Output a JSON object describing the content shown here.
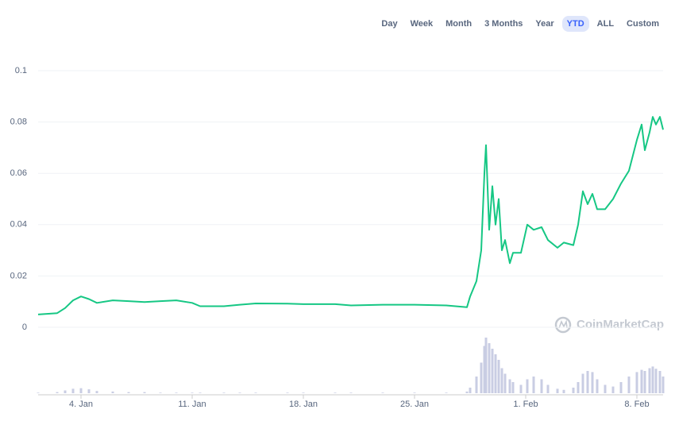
{
  "chart_data": {
    "type": "line",
    "range_buttons": [
      "Day",
      "Week",
      "Month",
      "3 Months",
      "Year",
      "YTD",
      "ALL",
      "Custom"
    ],
    "selected_range": 5,
    "watermark": "CoinMarketCap",
    "x": [
      1.3,
      2.5,
      3,
      3.5,
      4,
      4.5,
      5,
      6,
      7,
      8,
      9,
      10,
      11,
      11.5,
      13,
      14,
      15,
      17,
      18,
      20,
      21,
      23,
      25,
      27,
      28.3,
      28.5,
      28.9,
      29.2,
      29.4,
      29.5,
      29.7,
      29.9,
      30.1,
      30.3,
      30.5,
      30.7,
      31,
      31.2,
      31.7,
      32.1,
      32.5,
      33,
      33.4,
      34,
      34.4,
      35,
      35.3,
      35.6,
      35.9,
      36.2,
      36.5,
      37,
      37.5,
      38,
      38.5,
      39,
      39.3,
      39.5,
      39.8,
      40,
      40.2,
      40.45,
      40.65
    ],
    "series": [
      {
        "color": "#16c784",
        "values": [
          0.005,
          0.0055,
          0.0075,
          0.0105,
          0.012,
          0.011,
          0.0095,
          0.0105,
          0.0102,
          0.0098,
          0.0102,
          0.0105,
          0.0095,
          0.0082,
          0.0082,
          0.0088,
          0.0093,
          0.0092,
          0.009,
          0.009,
          0.0085,
          0.0088,
          0.0088,
          0.0085,
          0.0078,
          0.012,
          0.018,
          0.03,
          0.06,
          0.071,
          0.038,
          0.055,
          0.04,
          0.05,
          0.03,
          0.034,
          0.025,
          0.029,
          0.029,
          0.04,
          0.038,
          0.039,
          0.034,
          0.031,
          0.033,
          0.032,
          0.04,
          0.053,
          0.048,
          0.052,
          0.046,
          0.046,
          0.05,
          0.056,
          0.061,
          0.073,
          0.079,
          0.069,
          0.076,
          0.082,
          0.079,
          0.082,
          0.077
        ]
      }
    ],
    "volume": {
      "color": "#c9cde3",
      "ylim": [
        0,
        100
      ],
      "values": [
        1,
        2,
        5,
        8,
        9,
        7,
        4,
        3,
        2,
        2,
        1,
        1,
        1,
        1,
        1,
        1,
        1,
        1,
        1,
        1,
        1,
        1,
        1,
        1,
        3,
        10,
        30,
        55,
        85,
        100,
        90,
        80,
        70,
        60,
        45,
        35,
        25,
        20,
        15,
        25,
        30,
        25,
        15,
        8,
        6,
        10,
        20,
        35,
        40,
        38,
        25,
        15,
        12,
        20,
        30,
        38,
        42,
        40,
        45,
        48,
        44,
        40,
        30
      ]
    },
    "xlim": [
      1.3,
      40.65
    ],
    "xticks": [
      {
        "value": 4,
        "label": "4. Jan"
      },
      {
        "value": 11,
        "label": "11. Jan"
      },
      {
        "value": 18,
        "label": "18. Jan"
      },
      {
        "value": 25,
        "label": "25. Jan"
      },
      {
        "value": 32,
        "label": "1. Feb"
      },
      {
        "value": 39,
        "label": "8. Feb"
      }
    ],
    "ylim": [
      0,
      0.1
    ],
    "yticks": [
      0,
      0.02,
      0.04,
      0.06,
      0.08,
      0.1
    ],
    "grid": true
  }
}
